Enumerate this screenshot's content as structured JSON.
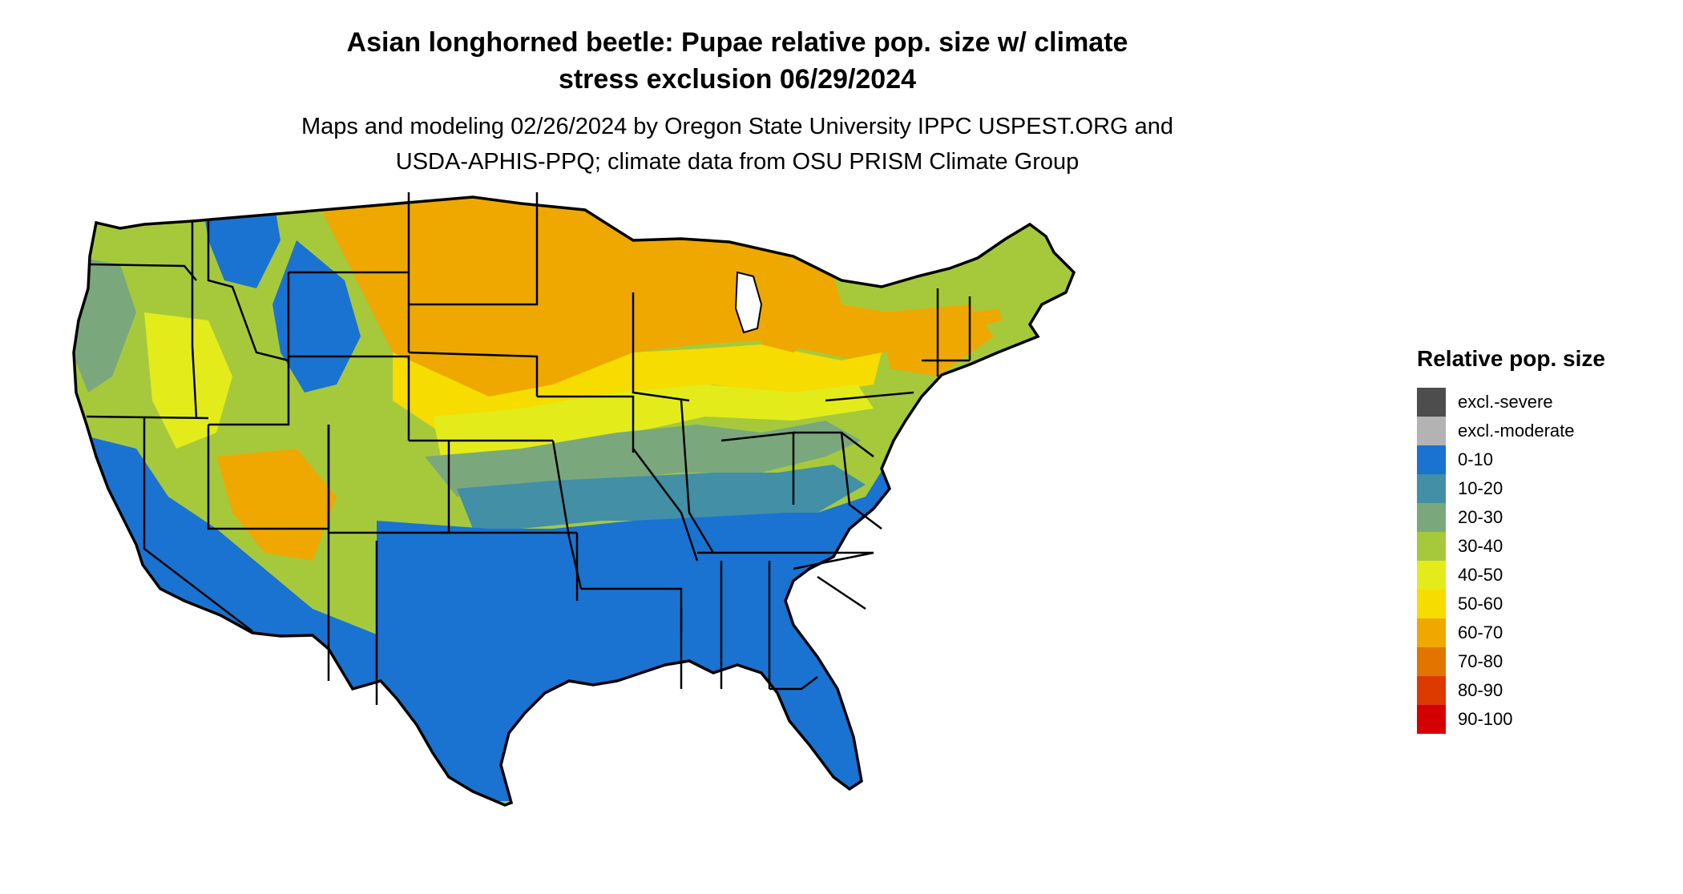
{
  "title": {
    "line1": "Asian longhorned beetle: Pupae relative pop. size w/ climate",
    "line2": "stress exclusion 06/29/2024"
  },
  "subtitle": {
    "line1": "Maps and modeling 02/26/2024 by Oregon State University IPPC USPEST.ORG and",
    "line2": "USDA-APHIS-PPQ; climate data from OSU PRISM Climate Group"
  },
  "legend": {
    "title": "Relative pop. size",
    "items": [
      {
        "label": "excl.-severe",
        "color": "#4d4d4d"
      },
      {
        "label": "excl.-moderate",
        "color": "#b3b3b3"
      },
      {
        "label": "0-10",
        "color": "#1a73d1"
      },
      {
        "label": "10-20",
        "color": "#428fa6"
      },
      {
        "label": "20-30",
        "color": "#7aa87c"
      },
      {
        "label": "30-40",
        "color": "#a6c93c"
      },
      {
        "label": "40-50",
        "color": "#e3ec1a"
      },
      {
        "label": "50-60",
        "color": "#f7dc00"
      },
      {
        "label": "60-70",
        "color": "#efa800"
      },
      {
        "label": "70-80",
        "color": "#e27500"
      },
      {
        "label": "80-90",
        "color": "#dd3a00"
      },
      {
        "label": "90-100",
        "color": "#d40000"
      }
    ]
  },
  "map": {
    "region": "conterminous-united-states",
    "colors": {
      "c0_10": "#1a73d1",
      "c10_20": "#428fa6",
      "c20_30": "#7aa87c",
      "c30_40": "#a6c93c",
      "c40_50": "#e3ec1a",
      "c50_60": "#f7dc00",
      "c60_70": "#efa800",
      "border": "#000000"
    }
  }
}
